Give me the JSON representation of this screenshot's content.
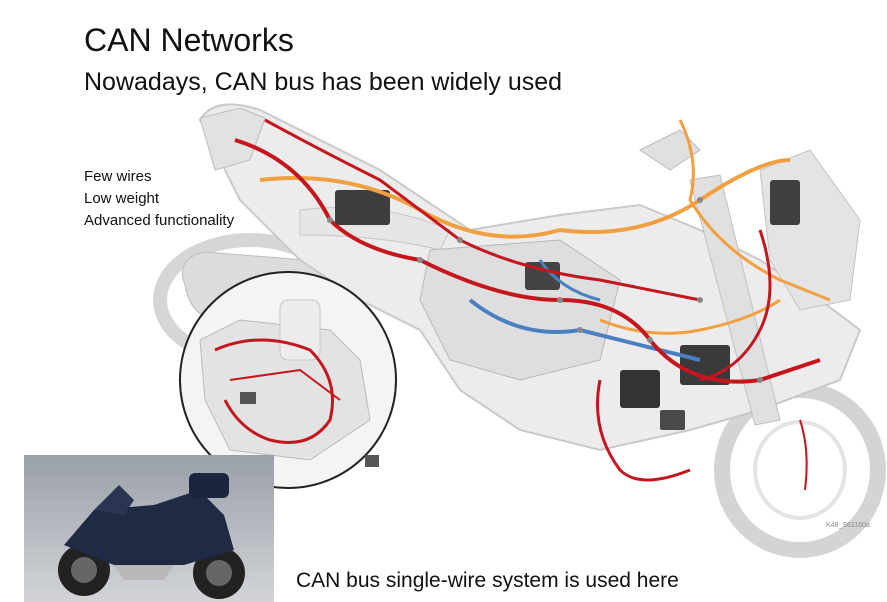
{
  "slide": {
    "title": "CAN Networks",
    "subtitle": "Nowadays, CAN bus has been widely used",
    "bullets": [
      "Few wires",
      "Low weight",
      "Advanced functionality"
    ],
    "caption": "CAN bus single-wire system is used here",
    "figure_code": "K48_S61160a"
  },
  "colors": {
    "wire_red": "#c4161c",
    "wire_orange": "#f0a040",
    "wire_blue": "#4a7fc1",
    "frame_gray": "#d9d9d9",
    "photo_bg": "#8a8e96"
  }
}
